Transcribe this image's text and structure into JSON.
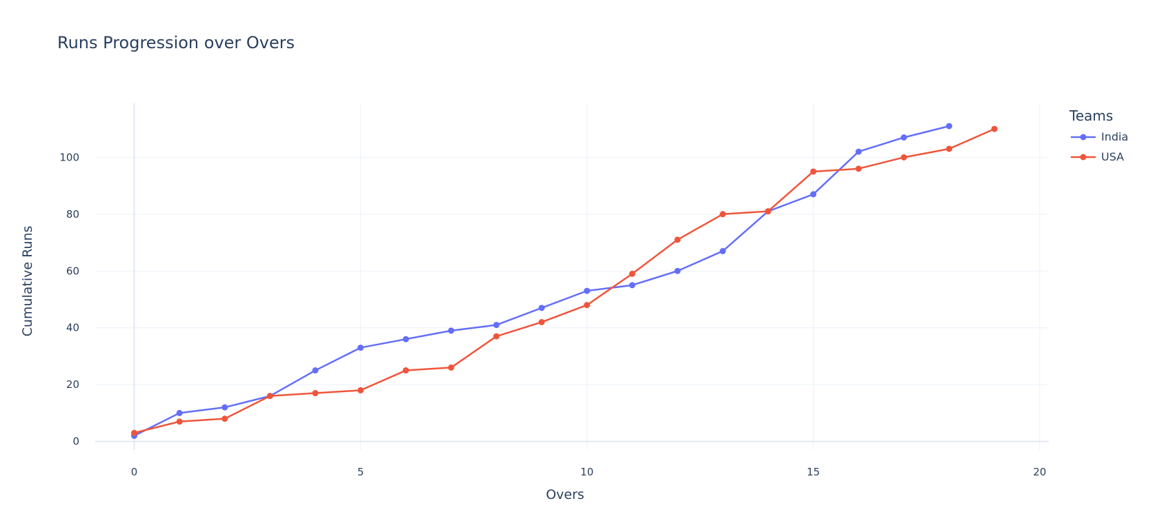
{
  "chart_data": {
    "type": "line",
    "title": "Runs Progression over Overs",
    "xlabel": "Overs",
    "ylabel": "Cumulative Runs",
    "xlim": [
      -1.7,
      20.2
    ],
    "ylim": [
      -3,
      119
    ],
    "x_ticks": [
      0,
      5,
      10,
      15,
      20
    ],
    "y_ticks": [
      0,
      20,
      40,
      60,
      80,
      100
    ],
    "grid": true,
    "legend": {
      "title": "Teams",
      "placement": "top-right"
    },
    "series": [
      {
        "name": "India",
        "color": "#636efa",
        "x": [
          0,
          1,
          2,
          3,
          4,
          5,
          6,
          7,
          8,
          9,
          10,
          11,
          12,
          13,
          14,
          15,
          16,
          17,
          18
        ],
        "y": [
          2,
          10,
          12,
          16,
          25,
          33,
          36,
          39,
          41,
          47,
          53,
          55,
          60,
          67,
          81,
          87,
          102,
          107,
          111
        ]
      },
      {
        "name": "USA",
        "color": "#ef553b",
        "x": [
          0,
          1,
          2,
          3,
          4,
          5,
          6,
          7,
          8,
          9,
          10,
          11,
          12,
          13,
          14,
          15,
          16,
          17,
          18,
          19
        ],
        "y": [
          3,
          7,
          8,
          16,
          17,
          18,
          25,
          26,
          37,
          42,
          48,
          59,
          71,
          80,
          81,
          95,
          96,
          100,
          103,
          110
        ]
      }
    ]
  }
}
